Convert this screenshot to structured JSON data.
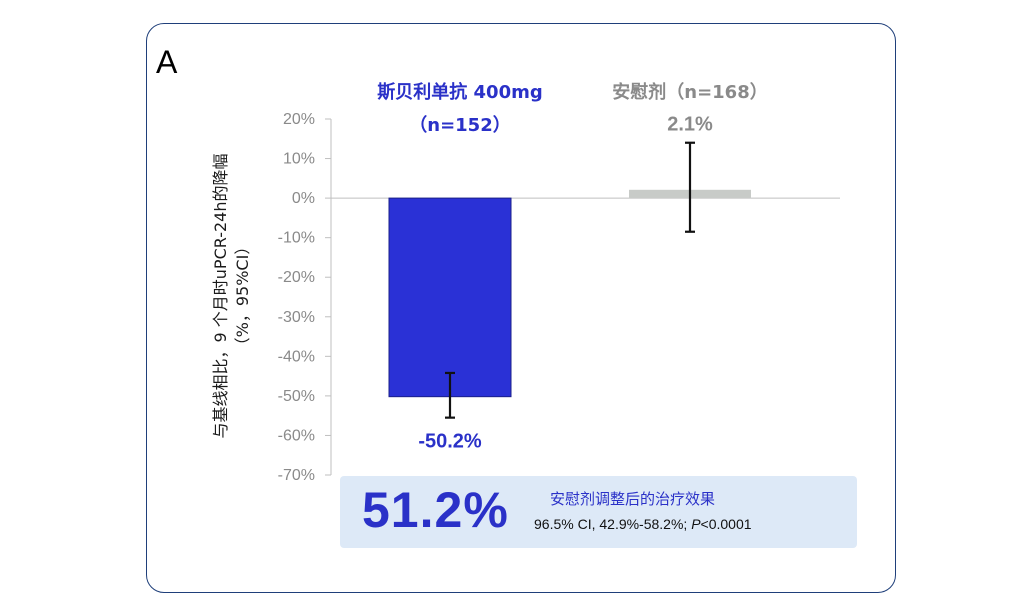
{
  "panel_label": "A",
  "summary": {
    "effect": "51.2%",
    "title": "安慰剂调整后的治疗效果",
    "ci_text": "96.5% CI, 42.9%-58.2%; ",
    "p_symbol": "P",
    "p_value": "<0.0001"
  },
  "chart_data": {
    "type": "bar",
    "ylabel_line1": "与基线相比，9 个月时uPCR-24h的降幅",
    "ylabel_line2": "（%，95%CI）",
    "ylim": [
      -70,
      20
    ],
    "yticks": [
      20,
      10,
      0,
      -10,
      -20,
      -30,
      -40,
      -50,
      -60,
      -70
    ],
    "ytick_labels": [
      "20%",
      "10%",
      "0%",
      "-10%",
      "-20%",
      "-30%",
      "-40%",
      "-50%",
      "-60%",
      "-70%"
    ],
    "grid": false,
    "series": [
      {
        "header_line1": "斯贝利单抗 400mg",
        "header_line2": "（n=152）",
        "value": -50.2,
        "value_label": "-50.2%",
        "ci": [
          -55.5,
          -44.2
        ],
        "color": "#2a31d6",
        "text_color": "#2a31c8"
      },
      {
        "header_line1": "安慰剂（n=168）",
        "header_line2": "",
        "value": 2.1,
        "value_label": "2.1%",
        "ci": [
          -8.5,
          14
        ],
        "color": "#c8cbc8",
        "text_color": "#8a8a8a"
      }
    ]
  }
}
